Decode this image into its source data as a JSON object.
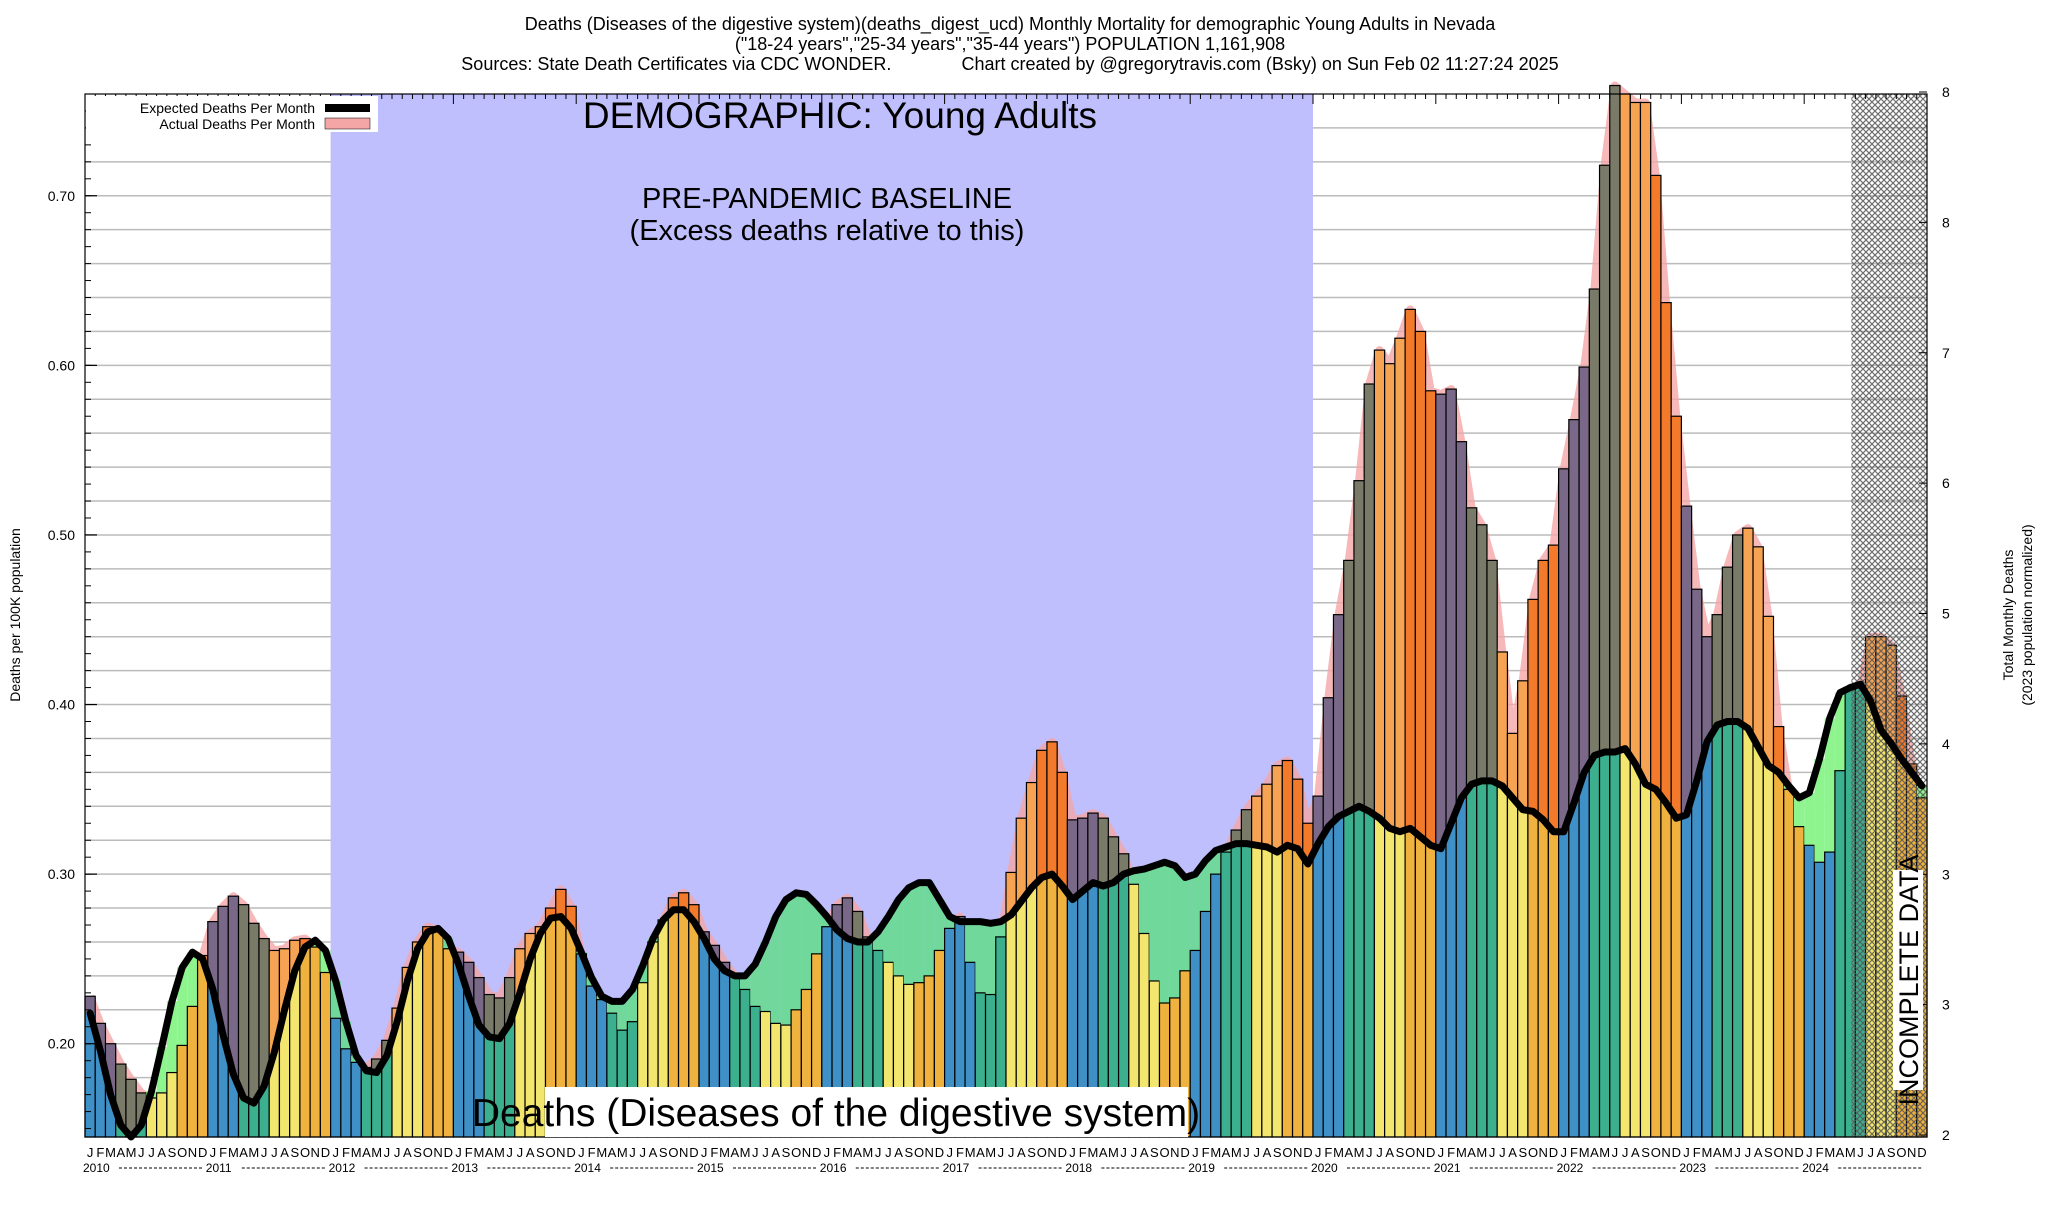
{
  "chart_data": {
    "type": "bar",
    "title_lines": [
      "Deaths (Diseases of the digestive system)(deaths_digest_ucd) Monthly Mortality for demographic Young Adults in Nevada",
      "(\"18-24 years\",\"25-34 years\",\"35-44 years\") POPULATION 1,161,908",
      "Sources: State Death Certificates via CDC WONDER.              Chart created by @gregorytravis.com (Bsky) on Sun Feb 02 11:27:24 2025"
    ],
    "ylabel": "Deaths per 100K population",
    "ylabel_right": [
      "Total Monthly Deaths",
      "(2023 population normalized)"
    ],
    "ylim": [
      0.145,
      0.76
    ],
    "yticks": [
      "0.20",
      "0.30",
      "0.40",
      "0.50",
      "0.60",
      "0.70"
    ],
    "ytick_values": [
      0.2,
      0.3,
      0.4,
      0.5,
      0.6,
      0.7
    ],
    "right_ticks": [
      "8",
      "8",
      "7",
      "6",
      "5",
      "4",
      "3",
      "3",
      "2"
    ],
    "grid": true,
    "legend_placement": "top-left",
    "legend": [
      {
        "label": "Expected Deaths Per Month",
        "color": "#000000"
      },
      {
        "label": "Actual Deaths Per Month",
        "color": "#f4a6a6"
      }
    ],
    "annotations": {
      "demographic": "DEMOGRAPHIC: Young Adults",
      "baseline_line1": "PRE-PANDEMIC BASELINE",
      "baseline_line2": "(Excess deaths relative to this)",
      "cause": "Deaths (Diseases of the digestive system)",
      "incomplete": "INCOMPLETE DATA"
    },
    "baseline_period": [
      "2012-01",
      "2019-12"
    ],
    "incomplete_from": "2024-06",
    "month_letters": [
      "J",
      "F",
      "M",
      "A",
      "M",
      "J",
      "J",
      "A",
      "S",
      "O",
      "N",
      "D"
    ],
    "years": [
      "2010",
      "2011",
      "2012",
      "2013",
      "2014",
      "2015",
      "2016",
      "2017",
      "2018",
      "2019",
      "2020",
      "2021",
      "2022",
      "2023",
      "2024"
    ],
    "actual": [
      0.228,
      0.212,
      0.2,
      0.188,
      0.179,
      0.171,
      0.168,
      0.171,
      0.183,
      0.199,
      0.222,
      0.252,
      0.272,
      0.281,
      0.287,
      0.282,
      0.271,
      0.262,
      0.255,
      0.256,
      0.261,
      0.262,
      0.257,
      0.242,
      0.215,
      0.197,
      0.189,
      0.186,
      0.191,
      0.202,
      0.221,
      0.245,
      0.26,
      0.269,
      0.267,
      0.256,
      0.254,
      0.248,
      0.239,
      0.229,
      0.227,
      0.239,
      0.256,
      0.265,
      0.269,
      0.28,
      0.291,
      0.281,
      0.253,
      0.234,
      0.226,
      0.218,
      0.208,
      0.213,
      0.236,
      0.26,
      0.273,
      0.286,
      0.289,
      0.282,
      0.266,
      0.258,
      0.248,
      0.24,
      0.232,
      0.222,
      0.219,
      0.212,
      0.211,
      0.22,
      0.232,
      0.253,
      0.269,
      0.282,
      0.286,
      0.278,
      0.263,
      0.255,
      0.248,
      0.24,
      0.235,
      0.236,
      0.24,
      0.255,
      0.268,
      0.275,
      0.248,
      0.23,
      0.229,
      0.263,
      0.301,
      0.333,
      0.354,
      0.373,
      0.378,
      0.36,
      0.332,
      0.333,
      0.336,
      0.333,
      0.322,
      0.312,
      0.294,
      0.265,
      0.237,
      0.224,
      0.227,
      0.243,
      0.255,
      0.278,
      0.3,
      0.313,
      0.326,
      0.338,
      0.346,
      0.353,
      0.364,
      0.367,
      0.356,
      0.33,
      0.346,
      0.404,
      0.453,
      0.485,
      0.532,
      0.589,
      0.609,
      0.601,
      0.616,
      0.633,
      0.62,
      0.585,
      0.583,
      0.586,
      0.555,
      0.516,
      0.506,
      0.485,
      0.431,
      0.383,
      0.414,
      0.462,
      0.485,
      0.494,
      0.539,
      0.568,
      0.599,
      0.645,
      0.718,
      0.765,
      0.76,
      0.755,
      0.755,
      0.712,
      0.637,
      0.57,
      0.517,
      0.468,
      0.44,
      0.453,
      0.481,
      0.5,
      0.504,
      0.493,
      0.452,
      0.387,
      0.35,
      0.328,
      0.317,
      0.307,
      0.313,
      0.361,
      0.41,
      0.41,
      0.44,
      0.44,
      0.435,
      0.405,
      0.365,
      0.345
    ],
    "expected": [
      0.218,
      0.196,
      0.17,
      0.152,
      0.145,
      0.152,
      0.172,
      0.198,
      0.225,
      0.245,
      0.254,
      0.25,
      0.232,
      0.205,
      0.182,
      0.168,
      0.165,
      0.175,
      0.195,
      0.22,
      0.243,
      0.257,
      0.261,
      0.255,
      0.237,
      0.213,
      0.193,
      0.184,
      0.183,
      0.193,
      0.213,
      0.237,
      0.256,
      0.266,
      0.268,
      0.262,
      0.247,
      0.228,
      0.211,
      0.204,
      0.203,
      0.212,
      0.23,
      0.25,
      0.265,
      0.274,
      0.275,
      0.268,
      0.254,
      0.239,
      0.228,
      0.225,
      0.225,
      0.232,
      0.246,
      0.262,
      0.273,
      0.279,
      0.279,
      0.272,
      0.262,
      0.25,
      0.243,
      0.24,
      0.24,
      0.247,
      0.26,
      0.275,
      0.285,
      0.289,
      0.288,
      0.282,
      0.275,
      0.267,
      0.262,
      0.26,
      0.26,
      0.266,
      0.275,
      0.285,
      0.292,
      0.295,
      0.295,
      0.285,
      0.275,
      0.272,
      0.272,
      0.272,
      0.271,
      0.272,
      0.276,
      0.284,
      0.292,
      0.298,
      0.3,
      0.293,
      0.285,
      0.29,
      0.295,
      0.293,
      0.295,
      0.3,
      0.302,
      0.303,
      0.305,
      0.307,
      0.305,
      0.298,
      0.3,
      0.308,
      0.314,
      0.316,
      0.318,
      0.318,
      0.317,
      0.316,
      0.313,
      0.317,
      0.315,
      0.306,
      0.318,
      0.328,
      0.334,
      0.337,
      0.34,
      0.337,
      0.333,
      0.327,
      0.325,
      0.327,
      0.322,
      0.317,
      0.315,
      0.33,
      0.345,
      0.353,
      0.355,
      0.355,
      0.352,
      0.345,
      0.338,
      0.337,
      0.332,
      0.325,
      0.325,
      0.342,
      0.36,
      0.37,
      0.372,
      0.372,
      0.374,
      0.365,
      0.353,
      0.35,
      0.342,
      0.333,
      0.335,
      0.355,
      0.378,
      0.388,
      0.39,
      0.39,
      0.386,
      0.375,
      0.364,
      0.36,
      0.352,
      0.345,
      0.348,
      0.368,
      0.392,
      0.407,
      0.41,
      0.412,
      0.402,
      0.385,
      0.377,
      0.368,
      0.36,
      0.352
    ],
    "colors": {
      "quarter_base": [
        "#3f90c6",
        "#3caf8e",
        "#f2e66e",
        "#efb23e"
      ],
      "quarter_excess": [
        "#7a6888",
        "#7a7a68",
        "#f6a354",
        "#f27a2a"
      ],
      "deficit": "#8ef58e",
      "deficit_baseline": "#6fd89a",
      "baseline_region": "#bfbffd",
      "actual_halo": "#f4a6a6",
      "expected_line": "#000000"
    }
  }
}
